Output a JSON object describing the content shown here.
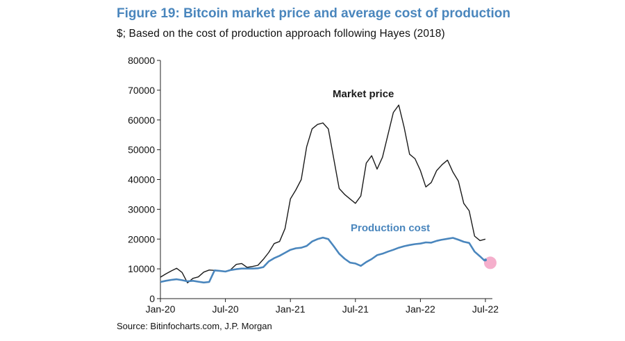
{
  "figure": {
    "title": "Figure 19: Bitcoin market price and average cost of production",
    "subtitle": "$; Based on the cost of production approach following Hayes (2018)",
    "source": "Source: Bitinfocharts.com, J.P. Morgan"
  },
  "colors": {
    "title": "#4a86bd",
    "market_price": "#1a1a1a",
    "production_cost": "#4a86bd",
    "highlight_dot": "#f4a6c6"
  },
  "chart_data": {
    "type": "line",
    "title": "Figure 19: Bitcoin market price and average cost of production",
    "subtitle": "$; Based on the cost of production approach following Hayes (2018)",
    "xlabel": "",
    "ylabel": "",
    "x_ticks": [
      "Jan-20",
      "Jul-20",
      "Jan-21",
      "Jul-21",
      "Jan-22",
      "Jul-22"
    ],
    "y_ticks": [
      "0",
      "10000",
      "20000",
      "30000",
      "40000",
      "50000",
      "60000",
      "70000",
      "80000"
    ],
    "xlim": [
      "2020-01",
      "2022-07"
    ],
    "ylim": [
      0,
      80000
    ],
    "grid": false,
    "annotations": [
      {
        "text": "Market price",
        "series": "Market price"
      },
      {
        "text": "Production cost",
        "series": "Production cost"
      }
    ],
    "highlight_point": {
      "x": "2022-07",
      "y": 12500
    },
    "series": [
      {
        "name": "Market price",
        "x": [
          "2020-01",
          "2020-01",
          "2020-02",
          "2020-02",
          "2020-03",
          "2020-03",
          "2020-04",
          "2020-04",
          "2020-05",
          "2020-05",
          "2020-06",
          "2020-06",
          "2020-07",
          "2020-07",
          "2020-08",
          "2020-08",
          "2020-09",
          "2020-09",
          "2020-10",
          "2020-10",
          "2020-11",
          "2020-11",
          "2020-12",
          "2020-12",
          "2021-01",
          "2021-01",
          "2021-02",
          "2021-02",
          "2021-03",
          "2021-03",
          "2021-04",
          "2021-04",
          "2021-05",
          "2021-05",
          "2021-06",
          "2021-06",
          "2021-07",
          "2021-07",
          "2021-08",
          "2021-08",
          "2021-09",
          "2021-09",
          "2021-10",
          "2021-10",
          "2021-11",
          "2021-11",
          "2021-12",
          "2021-12",
          "2022-01",
          "2022-01",
          "2022-02",
          "2022-02",
          "2022-03",
          "2022-03",
          "2022-04",
          "2022-04",
          "2022-05",
          "2022-05",
          "2022-06",
          "2022-06",
          "2022-07"
        ],
        "values": [
          7200,
          8300,
          9300,
          10200,
          8800,
          5300,
          6800,
          7300,
          8900,
          9600,
          9500,
          9300,
          9100,
          9800,
          11500,
          11800,
          10500,
          10800,
          11200,
          13200,
          15500,
          18500,
          19200,
          23500,
          33500,
          36500,
          40000,
          51000,
          57000,
          58500,
          59000,
          57000,
          47000,
          37000,
          35000,
          33500,
          32000,
          34500,
          45500,
          48000,
          43500,
          47500,
          55000,
          62500,
          65000,
          57500,
          48500,
          47000,
          43000,
          37500,
          39000,
          43000,
          45000,
          46500,
          42500,
          39500,
          32000,
          29500,
          21000,
          19500,
          20000
        ]
      },
      {
        "name": "Production cost",
        "x": [
          "2020-01",
          "2020-01",
          "2020-02",
          "2020-02",
          "2020-03",
          "2020-03",
          "2020-04",
          "2020-04",
          "2020-05",
          "2020-05",
          "2020-06",
          "2020-06",
          "2020-07",
          "2020-07",
          "2020-08",
          "2020-08",
          "2020-09",
          "2020-09",
          "2020-10",
          "2020-10",
          "2020-11",
          "2020-11",
          "2020-12",
          "2020-12",
          "2021-01",
          "2021-01",
          "2021-02",
          "2021-02",
          "2021-03",
          "2021-03",
          "2021-04",
          "2021-04",
          "2021-05",
          "2021-05",
          "2021-06",
          "2021-06",
          "2021-07",
          "2021-07",
          "2021-08",
          "2021-08",
          "2021-09",
          "2021-09",
          "2021-10",
          "2021-10",
          "2021-11",
          "2021-11",
          "2021-12",
          "2021-12",
          "2022-01",
          "2022-01",
          "2022-02",
          "2022-02",
          "2022-03",
          "2022-03",
          "2022-04",
          "2022-04",
          "2022-05",
          "2022-05",
          "2022-06",
          "2022-06",
          "2022-07"
        ],
        "values": [
          5600,
          6000,
          6300,
          6500,
          6200,
          5800,
          6000,
          5700,
          5400,
          5600,
          9500,
          9300,
          9100,
          9600,
          9900,
          10100,
          10100,
          10100,
          10200,
          10600,
          12500,
          13600,
          14400,
          15400,
          16400,
          16900,
          17100,
          17700,
          19200,
          20000,
          20500,
          20000,
          17600,
          15100,
          13400,
          12100,
          11800,
          11000,
          12300,
          13300,
          14600,
          15100,
          15800,
          16400,
          17100,
          17600,
          18000,
          18300,
          18500,
          18900,
          18800,
          19400,
          19800,
          20100,
          20400,
          19800,
          19100,
          18700,
          15800,
          14200,
          12500
        ]
      }
    ]
  }
}
